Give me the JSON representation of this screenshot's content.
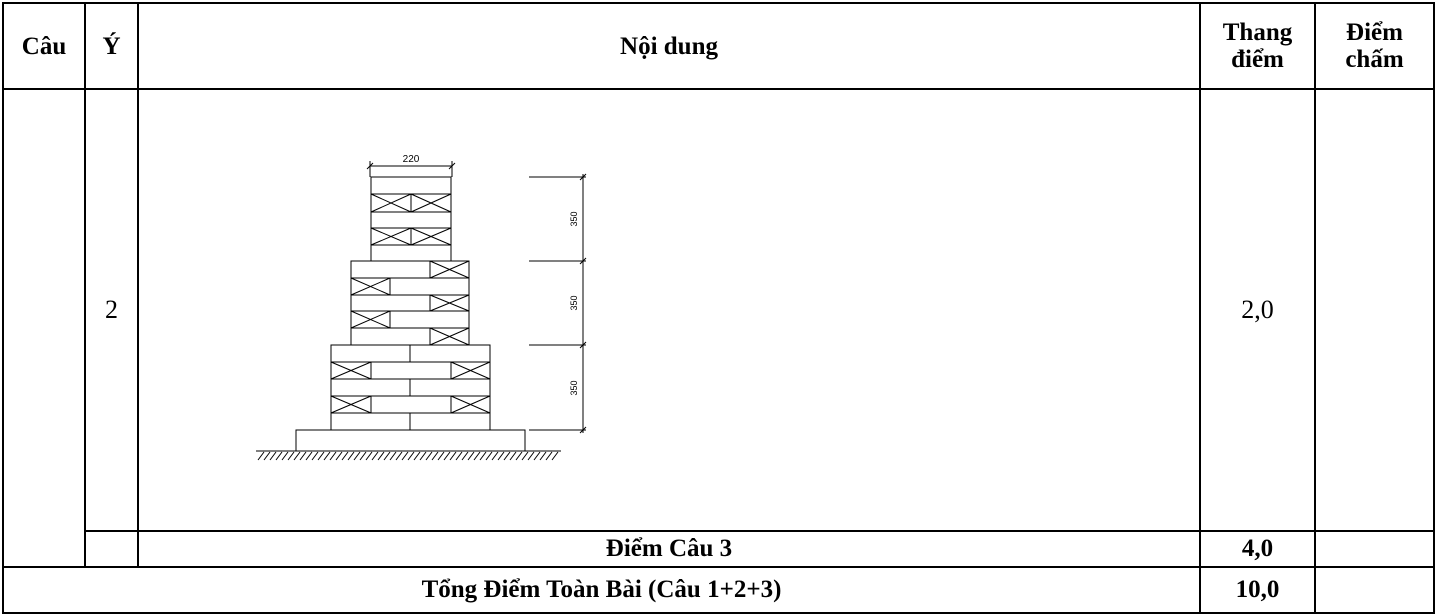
{
  "header": {
    "cau": "Câu",
    "y": "Ý",
    "noi_dung": "Nội dung",
    "thang_diem_1": "Thang",
    "thang_diem_2": "điểm",
    "diem_cham_1": "Điểm",
    "diem_cham_2": "chấm"
  },
  "row_y2": {
    "y": "2",
    "thang_diem": "2,0",
    "drawing": {
      "top_width_label": "220",
      "dimension_labels": [
        "350",
        "350",
        "350"
      ]
    }
  },
  "row_subtotal": {
    "label": "Điểm Câu 3",
    "score": "4,0"
  },
  "row_total": {
    "label": "Tổng Điểm Toàn Bài (Câu 1+2+3)",
    "score": "10,0"
  }
}
